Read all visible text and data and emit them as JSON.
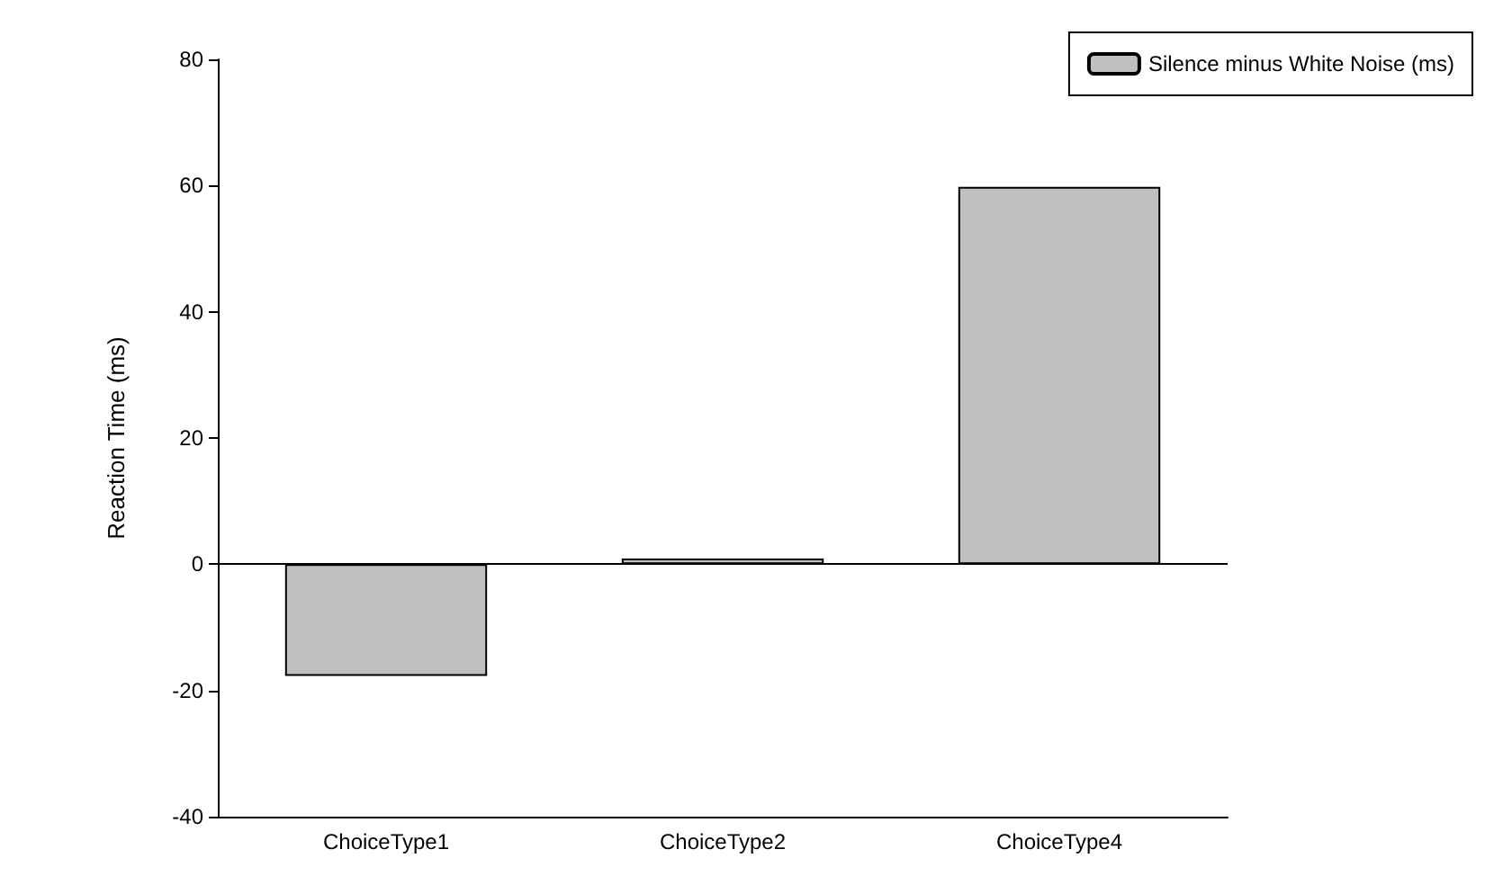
{
  "chart_data": {
    "type": "bar",
    "ylabel": "Reaction Time (ms)",
    "categories": [
      "ChoiceType1",
      "ChoiceType2",
      "ChoiceType4"
    ],
    "series": [
      {
        "name": "Silence minus White Noise (ms)",
        "color": "#c0c0c0",
        "values": [
          -17.7,
          0.9,
          59.8
        ]
      }
    ],
    "ylim": [
      -40,
      80
    ],
    "yticks": [
      -40,
      -20,
      0,
      20,
      40,
      60,
      80
    ],
    "grid": false,
    "legend": "top right",
    "ref_lines": [
      {
        "axis": "y",
        "value": 0,
        "color": "#000000"
      }
    ]
  }
}
